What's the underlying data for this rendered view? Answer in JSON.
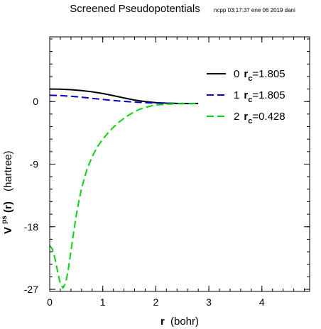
{
  "title": "Screened Pseudopotentials",
  "stamp": "ncpp 03:17:37 ene 06 2019 dani",
  "chart_data": {
    "type": "line",
    "xlabel": {
      "main": "r",
      "unit": "(bohr)"
    },
    "ylabel": {
      "main": "V",
      "sup": "ps",
      "arg": "(r)",
      "unit": "(hartree)"
    },
    "xlim": [
      0,
      4.9
    ],
    "ylim": [
      -27.3,
      9.3
    ],
    "x_ticks": [
      {
        "value": 0,
        "label": "0"
      },
      {
        "value": 1,
        "label": "1"
      },
      {
        "value": 2,
        "label": "2"
      },
      {
        "value": 3,
        "label": "3"
      },
      {
        "value": 4,
        "label": "4"
      }
    ],
    "y_ticks": [
      {
        "value": 0,
        "label": "0"
      },
      {
        "value": -9,
        "label": "-9"
      },
      {
        "value": -18,
        "label": "-18"
      },
      {
        "value": -27,
        "label": "-27"
      }
    ],
    "x_minor_step": 0.2,
    "y_minor_step": 1.8,
    "series": [
      {
        "prefix": "0",
        "rc_label": "r",
        "rc_sub": "c",
        "rc_value": "=1.805",
        "color": "#000000",
        "dash": "solid",
        "x": [
          0,
          0.2,
          0.4,
          0.6,
          0.8,
          1.0,
          1.2,
          1.4,
          1.6,
          1.8,
          2.0,
          2.2,
          2.4,
          2.6,
          2.8
        ],
        "y": [
          1.8,
          1.78,
          1.7,
          1.58,
          1.4,
          1.15,
          0.85,
          0.52,
          0.22,
          0.0,
          -0.15,
          -0.23,
          -0.27,
          -0.28,
          -0.28
        ]
      },
      {
        "prefix": "1",
        "rc_label": "r",
        "rc_sub": "c",
        "rc_value": "=1.805",
        "color": "#0000cc",
        "dash": "dashed",
        "x": [
          0,
          0.2,
          0.4,
          0.6,
          0.8,
          1.0,
          1.2,
          1.4,
          1.6,
          1.8,
          2.0,
          2.2,
          2.4,
          2.6,
          2.8
        ],
        "y": [
          0.9,
          0.86,
          0.76,
          0.62,
          0.46,
          0.3,
          0.15,
          0.02,
          -0.08,
          -0.16,
          -0.22,
          -0.26,
          -0.28,
          -0.29,
          -0.29
        ]
      },
      {
        "prefix": "2",
        "rc_label": "r",
        "rc_sub": "c",
        "rc_value": "=0.428",
        "color": "#00dd00",
        "dash": "dashed",
        "x": [
          0,
          0.05,
          0.1,
          0.15,
          0.2,
          0.25,
          0.3,
          0.35,
          0.4,
          0.45,
          0.5,
          0.55,
          0.6,
          0.7,
          0.8,
          0.9,
          1.0,
          1.1,
          1.2,
          1.3,
          1.4,
          1.5,
          1.6,
          1.7,
          1.8,
          1.9,
          2.0,
          2.2,
          2.4,
          2.6,
          2.8
        ],
        "y": [
          -20.7,
          -21.2,
          -22.6,
          -24.5,
          -26.2,
          -26.8,
          -26.1,
          -24.2,
          -21.5,
          -18.9,
          -16.4,
          -14.3,
          -12.5,
          -9.8,
          -7.9,
          -6.5,
          -5.4,
          -4.5,
          -3.7,
          -3.0,
          -2.4,
          -1.9,
          -1.45,
          -1.1,
          -0.85,
          -0.65,
          -0.5,
          -0.38,
          -0.32,
          -0.3,
          -0.29
        ]
      }
    ],
    "legend_position": "top-right"
  }
}
